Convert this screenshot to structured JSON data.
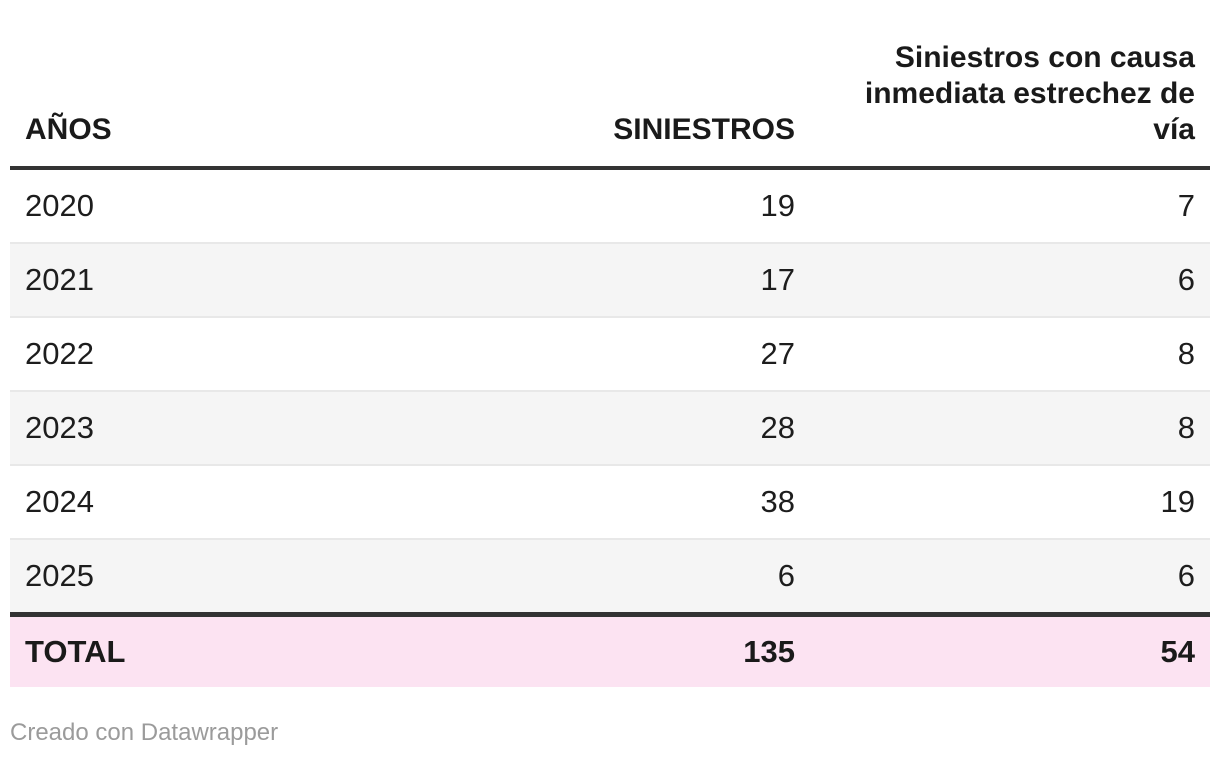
{
  "chart_data": {
    "type": "table",
    "columns": [
      "AÑOS",
      "SINIESTROS",
      "Siniestros con causa inmediata estrechez de vía"
    ],
    "rows": [
      [
        "2020",
        "19",
        "7"
      ],
      [
        "2021",
        "17",
        "6"
      ],
      [
        "2022",
        "27",
        "8"
      ],
      [
        "2023",
        "28",
        "8"
      ],
      [
        "2024",
        "38",
        "19"
      ],
      [
        "2025",
        "6",
        "6"
      ],
      [
        "TOTAL",
        "135",
        "54"
      ]
    ],
    "layout_hints": {
      "striped_rows": true,
      "total_row_highlighted": true,
      "numeric_columns_right_aligned": true
    }
  },
  "table": {
    "columns": [
      {
        "label": "AÑOS"
      },
      {
        "label": "SINIESTROS"
      },
      {
        "label": "Siniestros con causa inmediata estrechez de vía"
      }
    ],
    "rows": [
      {
        "year": "2020",
        "siniestros": "19",
        "estrechez": "7"
      },
      {
        "year": "2021",
        "siniestros": "17",
        "estrechez": "6"
      },
      {
        "year": "2022",
        "siniestros": "27",
        "estrechez": "8"
      },
      {
        "year": "2023",
        "siniestros": "28",
        "estrechez": "8"
      },
      {
        "year": "2024",
        "siniestros": "38",
        "estrechez": "19"
      },
      {
        "year": "2025",
        "siniestros": "6",
        "estrechez": "6"
      }
    ],
    "total": {
      "label": "TOTAL",
      "siniestros": "135",
      "estrechez": "54"
    }
  },
  "footer": {
    "attribution": "Creado con Datawrapper"
  },
  "colors": {
    "total_row_bg": "#fce3f2",
    "stripe_bg": "#f5f5f5",
    "thick_border": "#333333",
    "row_divider": "#e8e8e8",
    "text": "#1d1d1d",
    "attribution_text": "#9b9b9b"
  }
}
